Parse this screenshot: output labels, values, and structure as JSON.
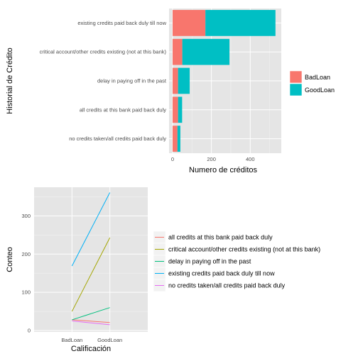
{
  "chart_data": [
    {
      "type": "bar",
      "orientation": "horizontal",
      "stacked": true,
      "xlabel": "Numero de créditos",
      "ylabel": "Historial de Crédito",
      "xlim": [
        0,
        560
      ],
      "xticks": [
        0,
        200,
        400
      ],
      "grid": true,
      "legend_position": "right",
      "categories": [
        "existing credits paid back duly till now",
        "critical account/other credits existing (not at this bank)",
        "delay in paying off in the past",
        "all credits at this bank paid back duly",
        "no credits taken/all credits paid back duly"
      ],
      "series": [
        {
          "name": "BadLoan",
          "color": "#F8766D",
          "values": [
            169,
            50,
            28,
            28,
            25
          ]
        },
        {
          "name": "GoodLoan",
          "color": "#00BFC4",
          "values": [
            361,
            243,
            60,
            21,
            15
          ]
        }
      ]
    },
    {
      "type": "line",
      "xlabel": "Calificación",
      "ylabel": "Conteo",
      "categories": [
        "BadLoan",
        "GoodLoan"
      ],
      "ylim": [
        0,
        375
      ],
      "yticks": [
        0,
        100,
        200,
        300
      ],
      "grid": true,
      "legend_position": "right",
      "series": [
        {
          "name": "all credits at this bank paid back duly",
          "color": "#F8766D",
          "values": [
            28,
            21
          ]
        },
        {
          "name": "critical account/other credits existing (not at this bank)",
          "color": "#A3A500",
          "values": [
            50,
            243
          ]
        },
        {
          "name": "delay in paying off in the past",
          "color": "#00BF7D",
          "values": [
            28,
            60
          ]
        },
        {
          "name": "existing credits paid back duly till now",
          "color": "#00B0F6",
          "values": [
            169,
            361
          ]
        },
        {
          "name": "no credits taken/all credits paid back duly",
          "color": "#E76BF3",
          "values": [
            25,
            15
          ]
        }
      ]
    }
  ]
}
